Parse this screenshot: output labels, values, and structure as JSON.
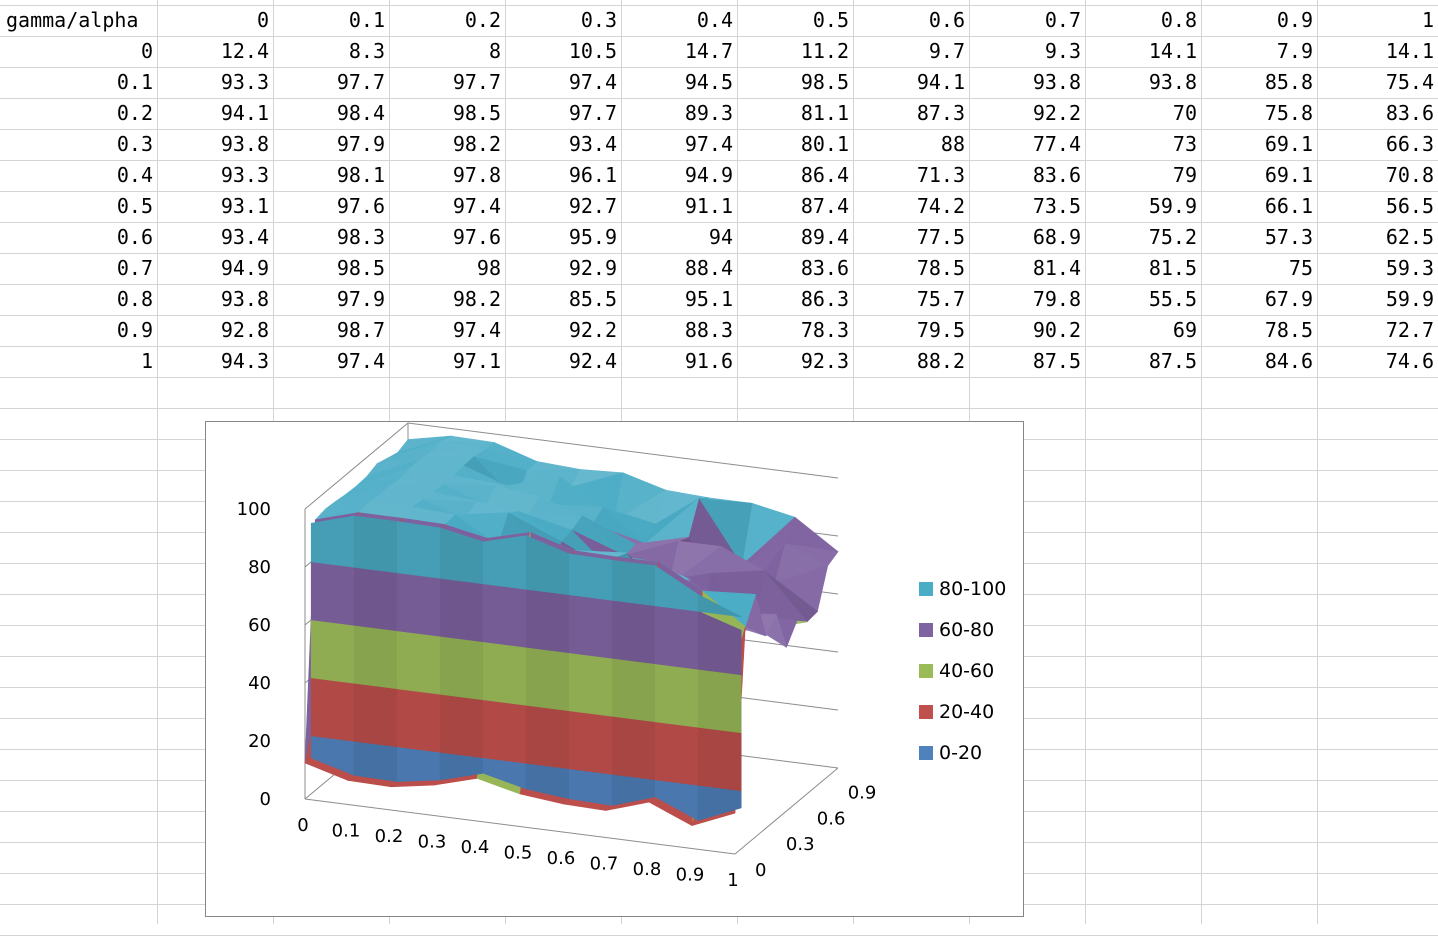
{
  "sheet": {
    "corner_label": "gamma/alpha",
    "column_headers": [
      "0",
      "0.1",
      "0.2",
      "0.3",
      "0.4",
      "0.5",
      "0.6",
      "0.7",
      "0.8",
      "0.9",
      "1"
    ],
    "row_headers": [
      "0",
      "0.1",
      "0.2",
      "0.3",
      "0.4",
      "0.5",
      "0.6",
      "0.7",
      "0.8",
      "0.9",
      "1"
    ],
    "cells": [
      [
        "12.4",
        "8.3",
        "8",
        "10.5",
        "14.7",
        "11.2",
        "9.7",
        "9.3",
        "14.1",
        "7.9",
        "14.1"
      ],
      [
        "93.3",
        "97.7",
        "97.7",
        "97.4",
        "94.5",
        "98.5",
        "94.1",
        "93.8",
        "93.8",
        "85.8",
        "75.4"
      ],
      [
        "94.1",
        "98.4",
        "98.5",
        "97.7",
        "89.3",
        "81.1",
        "87.3",
        "92.2",
        "70",
        "75.8",
        "83.6"
      ],
      [
        "93.8",
        "97.9",
        "98.2",
        "93.4",
        "97.4",
        "80.1",
        "88",
        "77.4",
        "73",
        "69.1",
        "66.3"
      ],
      [
        "93.3",
        "98.1",
        "97.8",
        "96.1",
        "94.9",
        "86.4",
        "71.3",
        "83.6",
        "79",
        "69.1",
        "70.8"
      ],
      [
        "93.1",
        "97.6",
        "97.4",
        "92.7",
        "91.1",
        "87.4",
        "74.2",
        "73.5",
        "59.9",
        "66.1",
        "56.5"
      ],
      [
        "93.4",
        "98.3",
        "97.6",
        "95.9",
        "94",
        "89.4",
        "77.5",
        "68.9",
        "75.2",
        "57.3",
        "62.5"
      ],
      [
        "94.9",
        "98.5",
        "98",
        "92.9",
        "88.4",
        "83.6",
        "78.5",
        "81.4",
        "81.5",
        "75",
        "59.3"
      ],
      [
        "93.8",
        "97.9",
        "98.2",
        "85.5",
        "95.1",
        "86.3",
        "75.7",
        "79.8",
        "55.5",
        "67.9",
        "59.9"
      ],
      [
        "92.8",
        "98.7",
        "97.4",
        "92.2",
        "88.3",
        "78.3",
        "79.5",
        "90.2",
        "69",
        "78.5",
        "72.7"
      ],
      [
        "94.3",
        "97.4",
        "97.1",
        "92.4",
        "91.6",
        "92.3",
        "88.2",
        "87.5",
        "87.5",
        "84.6",
        "74.6"
      ]
    ]
  },
  "chart_data": {
    "type": "surface",
    "x": [
      0,
      0.1,
      0.2,
      0.3,
      0.4,
      0.5,
      0.6,
      0.7,
      0.8,
      0.9,
      1
    ],
    "y": [
      0,
      0.1,
      0.2,
      0.3,
      0.4,
      0.5,
      0.6,
      0.7,
      0.8,
      0.9,
      1
    ],
    "z": [
      [
        12.4,
        8.3,
        8,
        10.5,
        14.7,
        11.2,
        9.7,
        9.3,
        14.1,
        7.9,
        14.1
      ],
      [
        93.3,
        97.7,
        97.7,
        97.4,
        94.5,
        98.5,
        94.1,
        93.8,
        93.8,
        85.8,
        75.4
      ],
      [
        94.1,
        98.4,
        98.5,
        97.7,
        89.3,
        81.1,
        87.3,
        92.2,
        70,
        75.8,
        83.6
      ],
      [
        93.8,
        97.9,
        98.2,
        93.4,
        97.4,
        80.1,
        88,
        77.4,
        73,
        69.1,
        66.3
      ],
      [
        93.3,
        98.1,
        97.8,
        96.1,
        94.9,
        86.4,
        71.3,
        83.6,
        79,
        69.1,
        70.8
      ],
      [
        93.1,
        97.6,
        97.4,
        92.7,
        91.1,
        87.4,
        74.2,
        73.5,
        59.9,
        66.1,
        56.5
      ],
      [
        93.4,
        98.3,
        97.6,
        95.9,
        94,
        89.4,
        77.5,
        68.9,
        75.2,
        57.3,
        62.5
      ],
      [
        94.9,
        98.5,
        98,
        92.9,
        88.4,
        83.6,
        78.5,
        81.4,
        81.5,
        75,
        59.3
      ],
      [
        93.8,
        97.9,
        98.2,
        85.5,
        95.1,
        86.3,
        75.7,
        79.8,
        55.5,
        67.9,
        59.9
      ],
      [
        92.8,
        98.7,
        97.4,
        92.2,
        88.3,
        78.3,
        79.5,
        90.2,
        69,
        78.5,
        72.7
      ],
      [
        94.3,
        97.4,
        97.1,
        92.4,
        91.6,
        92.3,
        88.2,
        87.5,
        87.5,
        84.6,
        74.6
      ]
    ],
    "zlim": [
      0,
      100
    ],
    "z_ticks": [
      "0",
      "20",
      "40",
      "60",
      "80",
      "100"
    ],
    "x_ticks": [
      "0",
      "0.1",
      "0.2",
      "0.3",
      "0.4",
      "0.5",
      "0.6",
      "0.7",
      "0.8",
      "0.9",
      "1"
    ],
    "y_ticks": [
      "0",
      "0.3",
      "0.6",
      "0.9"
    ],
    "legend_position": "right",
    "legend": [
      {
        "label": "80-100",
        "color": "#4bacc6"
      },
      {
        "label": "60-80",
        "color": "#8064a2"
      },
      {
        "label": "40-60",
        "color": "#9bbb59"
      },
      {
        "label": "20-40",
        "color": "#c0504d"
      },
      {
        "label": "0-20",
        "color": "#4f81bd"
      }
    ],
    "bands": [
      {
        "from": 0,
        "to": 20,
        "color": "#4f81bd"
      },
      {
        "from": 20,
        "to": 40,
        "color": "#c0504d"
      },
      {
        "from": 40,
        "to": 60,
        "color": "#9bbb59"
      },
      {
        "from": 60,
        "to": 80,
        "color": "#8064a2"
      },
      {
        "from": 80,
        "to": 100,
        "color": "#4bacc6"
      }
    ],
    "grid": true,
    "title": "",
    "xlabel": "",
    "ylabel": ""
  }
}
